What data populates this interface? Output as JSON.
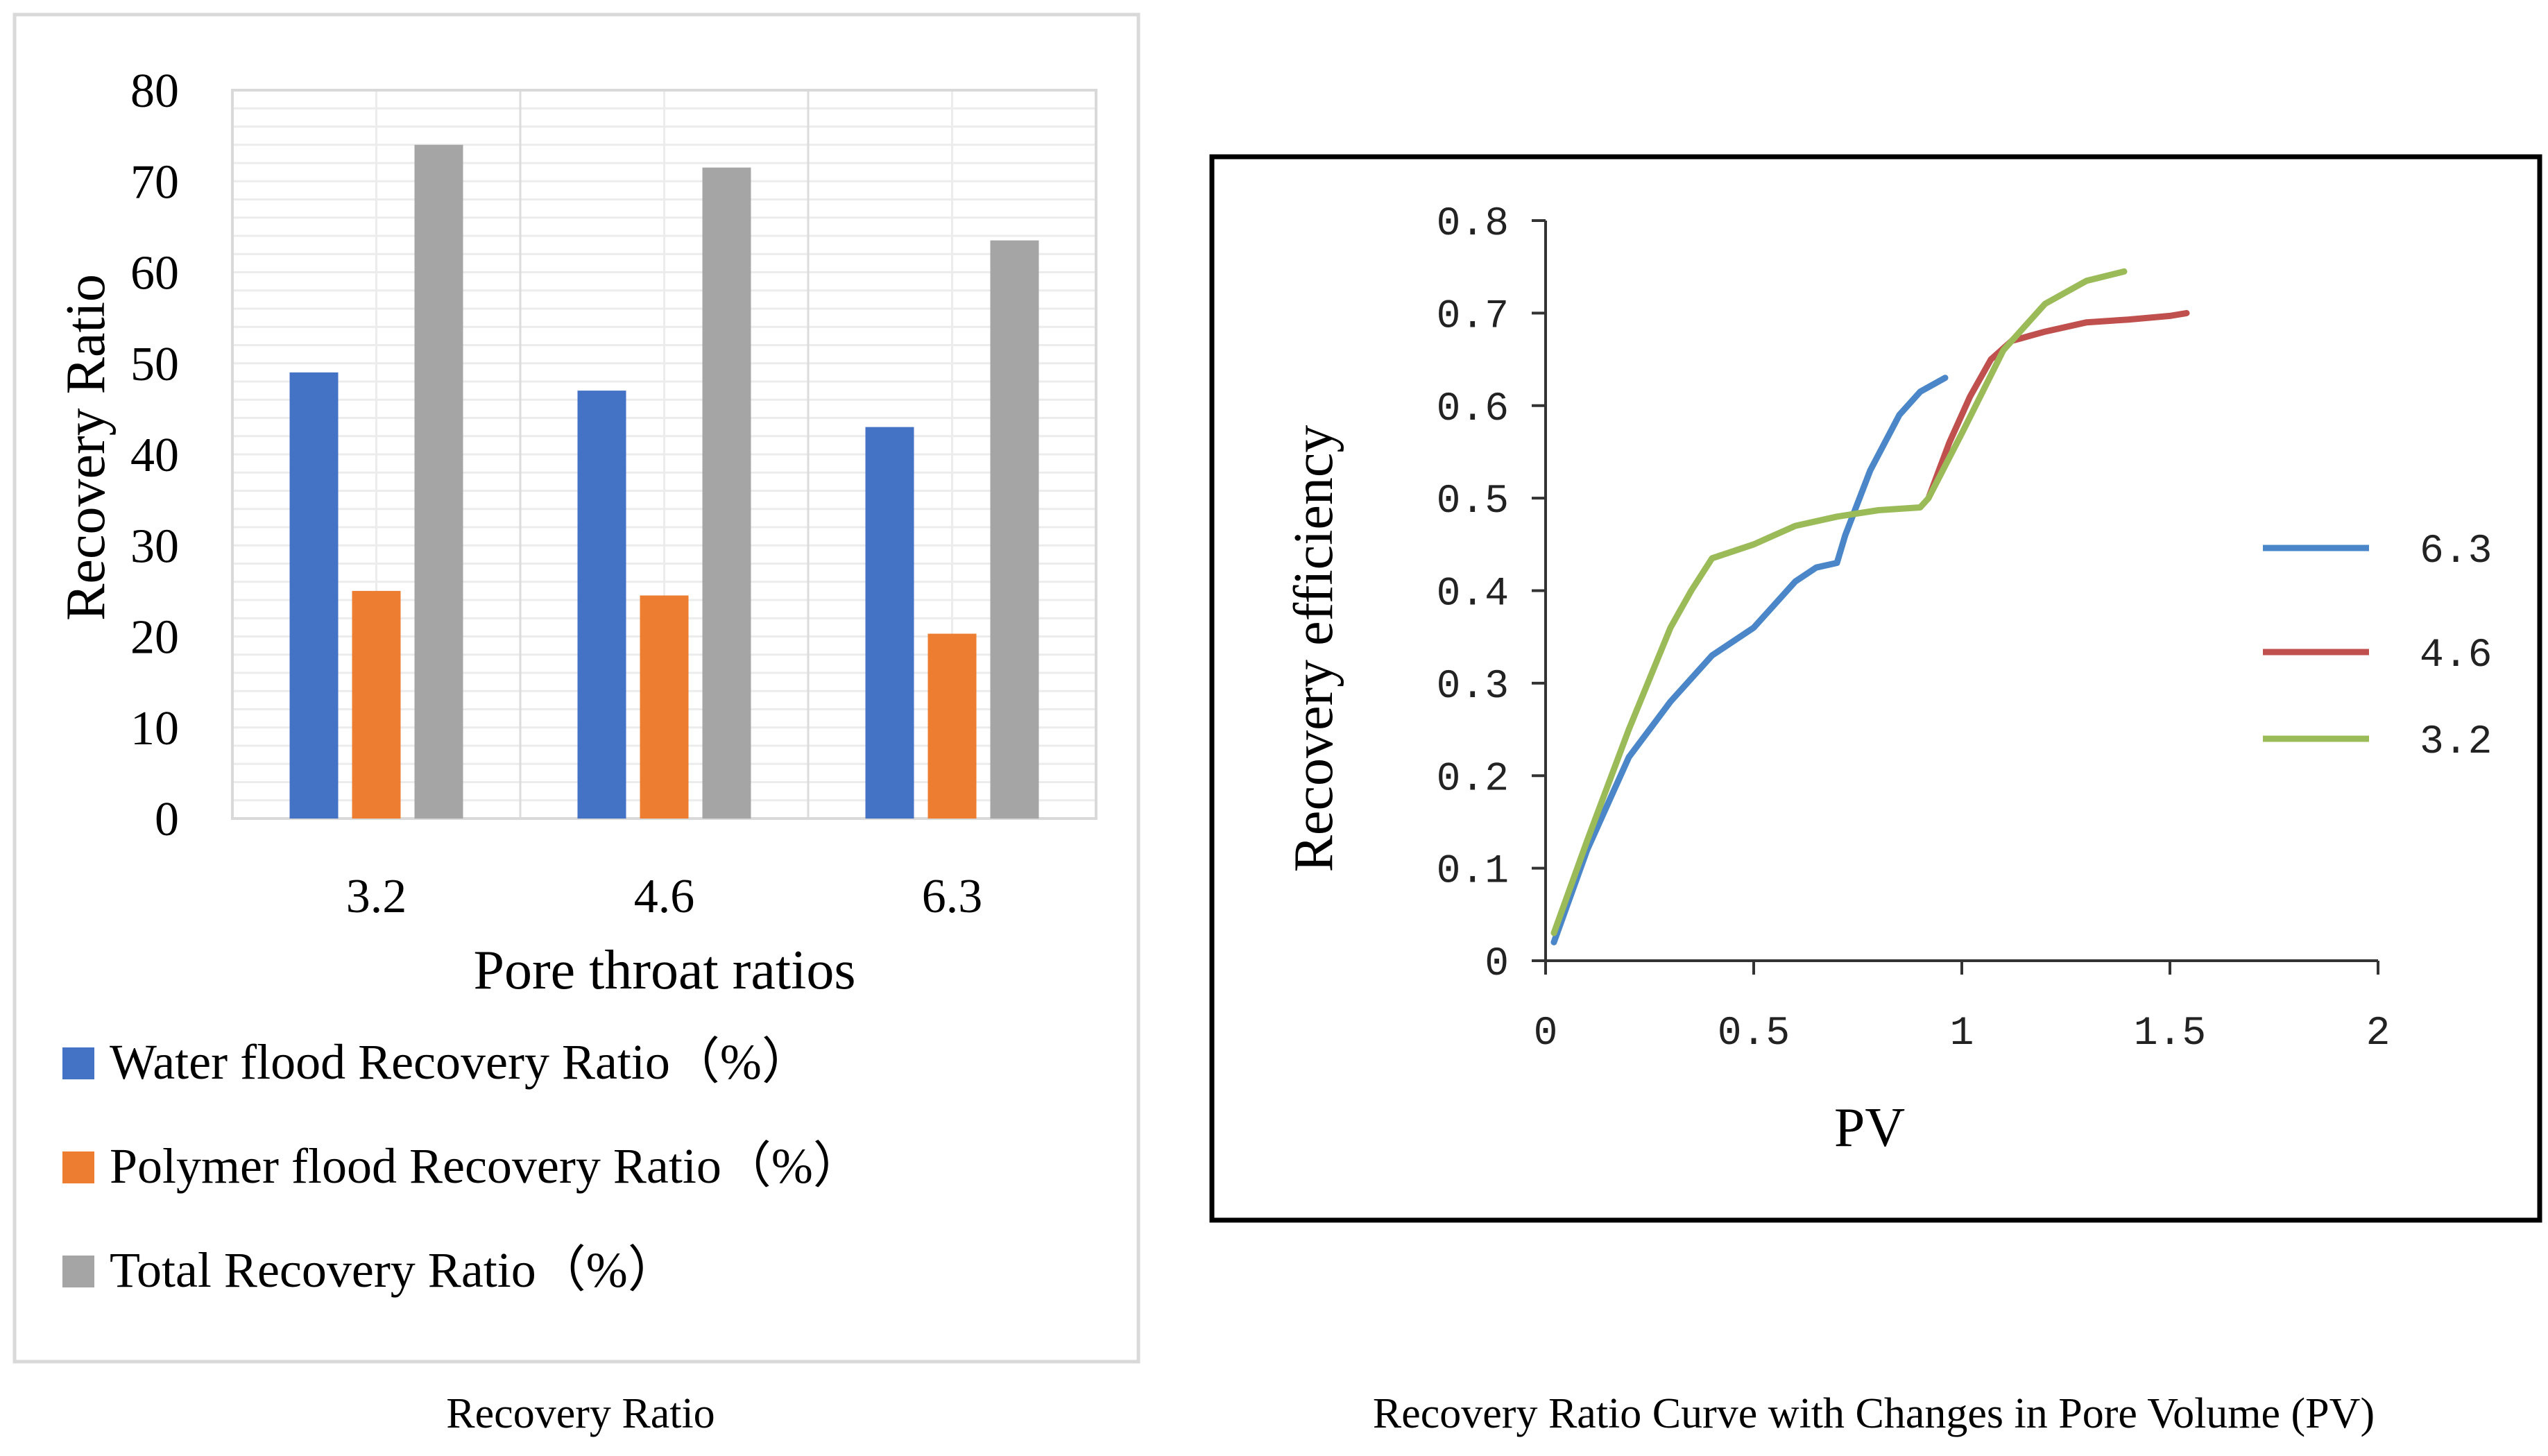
{
  "chart_data": [
    {
      "type": "bar",
      "title": "",
      "xlabel": "Pore throat ratios",
      "ylabel": "Recovery Ratio",
      "categories": [
        "3.2",
        "4.6",
        "6.3"
      ],
      "yticks": [
        "0",
        "10",
        "20",
        "30",
        "40",
        "50",
        "60",
        "70",
        "80"
      ],
      "ylim": [
        0,
        80
      ],
      "grid": true,
      "legend_position": "bottom",
      "caption": "Recovery Ratio",
      "series": [
        {
          "name": "Water flood Recovery Ratio（%）",
          "color": "#4472C4",
          "values": [
            49,
            47,
            43
          ]
        },
        {
          "name": "Polymer flood Recovery Ratio（%）",
          "color": "#ED7D31",
          "values": [
            25,
            24.5,
            20.3
          ]
        },
        {
          "name": "Total Recovery Ratio（%）",
          "color": "#A5A5A5",
          "values": [
            74,
            71.5,
            63.5
          ]
        }
      ]
    },
    {
      "type": "line",
      "title": "",
      "xlabel": "PV",
      "ylabel": "Recovery efficiency",
      "xlim": [
        0,
        2
      ],
      "ylim": [
        0,
        0.8
      ],
      "xticks": [
        "0",
        "0.5",
        "1",
        "1.5",
        "2"
      ],
      "yticks": [
        "0",
        "0.1",
        "0.2",
        "0.3",
        "0.4",
        "0.5",
        "0.6",
        "0.7",
        "0.8"
      ],
      "grid": false,
      "legend_position": "right",
      "caption": "Recovery Ratio Curve with Changes in Pore Volume (PV)",
      "series": [
        {
          "name": "6.3",
          "color": "#4A86C8",
          "x": [
            0.02,
            0.1,
            0.2,
            0.3,
            0.4,
            0.5,
            0.6,
            0.65,
            0.7,
            0.72,
            0.78,
            0.85,
            0.9,
            0.96
          ],
          "y": [
            0.02,
            0.12,
            0.22,
            0.28,
            0.33,
            0.36,
            0.41,
            0.425,
            0.43,
            0.46,
            0.53,
            0.59,
            0.615,
            0.63
          ]
        },
        {
          "name": "4.6",
          "color": "#C0504D",
          "x": [
            0.92,
            0.97,
            1.02,
            1.07,
            1.12,
            1.2,
            1.3,
            1.4,
            1.5,
            1.54
          ],
          "y": [
            0.5,
            0.56,
            0.61,
            0.65,
            0.67,
            0.68,
            0.69,
            0.693,
            0.697,
            0.7
          ]
        },
        {
          "name": "3.2",
          "color": "#9BBB59",
          "x": [
            0.02,
            0.1,
            0.2,
            0.3,
            0.35,
            0.4,
            0.5,
            0.6,
            0.7,
            0.8,
            0.9,
            0.92,
            1.0,
            1.1,
            1.2,
            1.3,
            1.39
          ],
          "y": [
            0.03,
            0.13,
            0.25,
            0.36,
            0.4,
            0.435,
            0.45,
            0.47,
            0.48,
            0.487,
            0.49,
            0.5,
            0.57,
            0.66,
            0.71,
            0.735,
            0.745
          ]
        }
      ]
    }
  ]
}
